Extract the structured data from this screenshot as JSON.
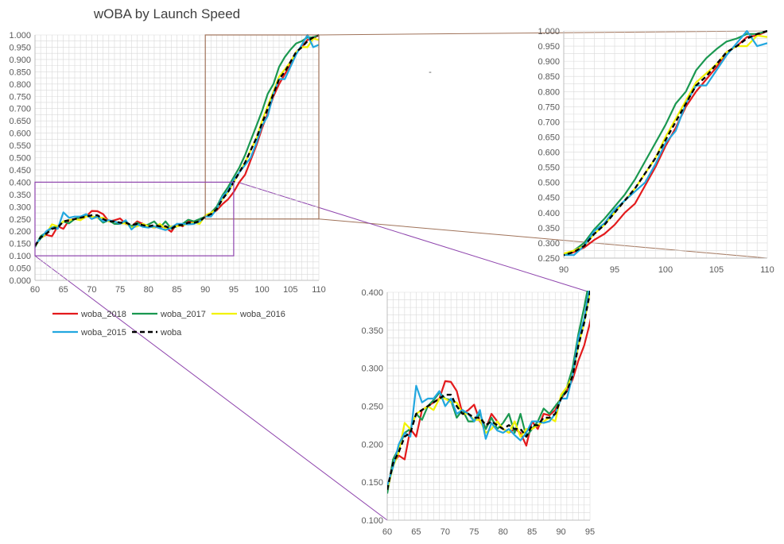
{
  "colors": {
    "woba_2018": "#e31a1c",
    "woba_2017": "#1a9850",
    "woba_2016": "#f2f200",
    "woba_2015": "#22a7df",
    "woba": "#000000",
    "zoom_high": "#a0735a",
    "zoom_low": "#8e44ad",
    "grid": "#d9d9d9"
  },
  "chart_data": [
    {
      "type": "line",
      "panel": "main",
      "title": "wOBA by Launch Speed",
      "xlim": [
        60,
        110
      ],
      "ylim": [
        0,
        1
      ],
      "x_ticks": [
        "60",
        "65",
        "70",
        "75",
        "80",
        "85",
        "90",
        "95",
        "100",
        "105",
        "110"
      ],
      "y_ticks": [
        "0.000",
        "0.050",
        "0.100",
        "0.150",
        "0.200",
        "0.250",
        "0.300",
        "0.350",
        "0.400",
        "0.450",
        "0.500",
        "0.550",
        "0.600",
        "0.650",
        "0.700",
        "0.750",
        "0.800",
        "0.850",
        "0.900",
        "0.950",
        "1.000"
      ],
      "grid": true,
      "legend": "bottom-left",
      "legend_entries": [
        "woba_2018",
        "woba_2017",
        "woba_2016",
        "woba_2015",
        "woba"
      ],
      "zoom_boxes": [
        {
          "x": [
            90,
            110
          ],
          "y": [
            0.25,
            1.0
          ],
          "color": "zoom_high"
        },
        {
          "x": [
            60,
            95
          ],
          "y": [
            0.1,
            0.4
          ],
          "color": "zoom_low"
        }
      ]
    },
    {
      "type": "line",
      "panel": "zoom-high",
      "xlim": [
        90,
        110
      ],
      "ylim": [
        0.25,
        1.0
      ],
      "x_ticks": [
        "90",
        "95",
        "100",
        "105",
        "110"
      ],
      "y_ticks": [
        "0.250",
        "0.300",
        "0.350",
        "0.400",
        "0.450",
        "0.500",
        "0.550",
        "0.600",
        "0.650",
        "0.700",
        "0.750",
        "0.800",
        "0.850",
        "0.900",
        "0.950",
        "1.000"
      ],
      "grid": true
    },
    {
      "type": "line",
      "panel": "zoom-low",
      "xlim": [
        60,
        95
      ],
      "ylim": [
        0.1,
        0.4
      ],
      "x_ticks": [
        "60",
        "65",
        "70",
        "75",
        "80",
        "85",
        "90",
        "95"
      ],
      "y_ticks": [
        "0.100",
        "0.150",
        "0.200",
        "0.250",
        "0.300",
        "0.350",
        "0.400"
      ],
      "grid": true
    }
  ],
  "series": [
    {
      "name": "woba_2018",
      "color_key": "woba_2018",
      "dash": false,
      "x": [
        60,
        61,
        62,
        63,
        64,
        65,
        66,
        67,
        68,
        69,
        70,
        71,
        72,
        73,
        74,
        75,
        76,
        77,
        78,
        79,
        80,
        81,
        82,
        83,
        84,
        85,
        86,
        87,
        88,
        89,
        90,
        91,
        92,
        93,
        94,
        95,
        96,
        97,
        98,
        99,
        100,
        101,
        102,
        103,
        104,
        105,
        106,
        107,
        108,
        109,
        110
      ],
      "y": [
        0.14,
        0.175,
        0.185,
        0.18,
        0.22,
        0.21,
        0.245,
        0.25,
        0.255,
        0.26,
        0.283,
        0.282,
        0.27,
        0.24,
        0.245,
        0.252,
        0.23,
        0.22,
        0.24,
        0.23,
        0.22,
        0.215,
        0.22,
        0.215,
        0.198,
        0.23,
        0.22,
        0.24,
        0.238,
        0.245,
        0.26,
        0.27,
        0.285,
        0.31,
        0.33,
        0.36,
        0.4,
        0.43,
        0.49,
        0.55,
        0.62,
        0.68,
        0.75,
        0.8,
        0.84,
        0.88,
        0.93,
        0.95,
        0.98,
        0.985,
        1.0
      ]
    },
    {
      "name": "woba_2017",
      "color_key": "woba_2017",
      "dash": false,
      "x": [
        60,
        61,
        62,
        63,
        64,
        65,
        66,
        67,
        68,
        69,
        70,
        71,
        72,
        73,
        74,
        75,
        76,
        77,
        78,
        79,
        80,
        81,
        82,
        83,
        84,
        85,
        86,
        87,
        88,
        89,
        90,
        91,
        92,
        93,
        94,
        95,
        96,
        97,
        98,
        99,
        100,
        101,
        102,
        103,
        104,
        105,
        106,
        107,
        108,
        109,
        110
      ],
      "y": [
        0.135,
        0.18,
        0.195,
        0.215,
        0.22,
        0.24,
        0.232,
        0.25,
        0.258,
        0.268,
        0.26,
        0.258,
        0.235,
        0.245,
        0.23,
        0.23,
        0.24,
        0.22,
        0.235,
        0.22,
        0.228,
        0.24,
        0.215,
        0.24,
        0.21,
        0.22,
        0.23,
        0.247,
        0.24,
        0.25,
        0.26,
        0.275,
        0.3,
        0.345,
        0.38,
        0.42,
        0.46,
        0.51,
        0.57,
        0.63,
        0.69,
        0.76,
        0.8,
        0.87,
        0.91,
        0.94,
        0.965,
        0.975,
        0.99,
        0.99,
        1.0
      ]
    },
    {
      "name": "woba_2016",
      "color_key": "woba_2016",
      "dash": false,
      "x": [
        60,
        61,
        62,
        63,
        64,
        65,
        66,
        67,
        68,
        69,
        70,
        71,
        72,
        73,
        74,
        75,
        76,
        77,
        78,
        79,
        80,
        81,
        82,
        83,
        84,
        85,
        86,
        87,
        88,
        89,
        90,
        91,
        92,
        93,
        94,
        95,
        96,
        97,
        98,
        99,
        100,
        101,
        102,
        103,
        104,
        105,
        106,
        107,
        108,
        109,
        110
      ],
      "y": [
        0.14,
        0.17,
        0.19,
        0.228,
        0.22,
        0.24,
        0.245,
        0.25,
        0.245,
        0.26,
        0.26,
        0.255,
        0.255,
        0.24,
        0.24,
        0.232,
        0.232,
        0.215,
        0.22,
        0.23,
        0.22,
        0.215,
        0.23,
        0.21,
        0.22,
        0.22,
        0.225,
        0.23,
        0.235,
        0.23,
        0.265,
        0.275,
        0.29,
        0.33,
        0.36,
        0.4,
        0.44,
        0.48,
        0.53,
        0.58,
        0.65,
        0.71,
        0.77,
        0.83,
        0.86,
        0.89,
        0.93,
        0.95,
        0.95,
        0.985,
        0.98
      ]
    },
    {
      "name": "woba_2015",
      "color_key": "woba_2015",
      "dash": false,
      "x": [
        60,
        61,
        62,
        63,
        64,
        65,
        66,
        67,
        68,
        69,
        70,
        71,
        72,
        73,
        74,
        75,
        76,
        77,
        78,
        79,
        80,
        81,
        82,
        83,
        84,
        85,
        86,
        87,
        88,
        89,
        90,
        91,
        92,
        93,
        94,
        95,
        96,
        97,
        98,
        99,
        100,
        101,
        102,
        103,
        104,
        105,
        106,
        107,
        108,
        109,
        110
      ],
      "y": [
        0.145,
        0.17,
        0.2,
        0.215,
        0.21,
        0.277,
        0.255,
        0.26,
        0.26,
        0.27,
        0.25,
        0.26,
        0.24,
        0.245,
        0.24,
        0.23,
        0.245,
        0.207,
        0.228,
        0.218,
        0.215,
        0.22,
        0.212,
        0.205,
        0.215,
        0.23,
        0.23,
        0.228,
        0.23,
        0.24,
        0.26,
        0.26,
        0.29,
        0.34,
        0.365,
        0.41,
        0.44,
        0.47,
        0.5,
        0.56,
        0.63,
        0.67,
        0.76,
        0.82,
        0.82,
        0.87,
        0.92,
        0.96,
        1.0,
        0.95,
        0.96
      ]
    },
    {
      "name": "woba",
      "color_key": "woba",
      "dash": true,
      "x": [
        60,
        61,
        62,
        63,
        64,
        65,
        66,
        67,
        68,
        69,
        70,
        71,
        72,
        73,
        74,
        75,
        76,
        77,
        78,
        79,
        80,
        81,
        82,
        83,
        84,
        85,
        86,
        87,
        88,
        89,
        90,
        91,
        92,
        93,
        94,
        95,
        96,
        97,
        98,
        99,
        100,
        101,
        102,
        103,
        104,
        105,
        106,
        107,
        108,
        109,
        110
      ],
      "y": [
        0.14,
        0.175,
        0.19,
        0.21,
        0.215,
        0.24,
        0.245,
        0.25,
        0.255,
        0.26,
        0.265,
        0.265,
        0.25,
        0.24,
        0.24,
        0.235,
        0.235,
        0.225,
        0.23,
        0.225,
        0.22,
        0.225,
        0.22,
        0.22,
        0.21,
        0.225,
        0.225,
        0.235,
        0.235,
        0.24,
        0.26,
        0.27,
        0.29,
        0.33,
        0.36,
        0.4,
        0.44,
        0.48,
        0.53,
        0.58,
        0.64,
        0.7,
        0.76,
        0.82,
        0.85,
        0.89,
        0.93,
        0.95,
        0.975,
        0.99,
        1.0
      ]
    }
  ],
  "decor": {
    "dash_mark": "-"
  }
}
